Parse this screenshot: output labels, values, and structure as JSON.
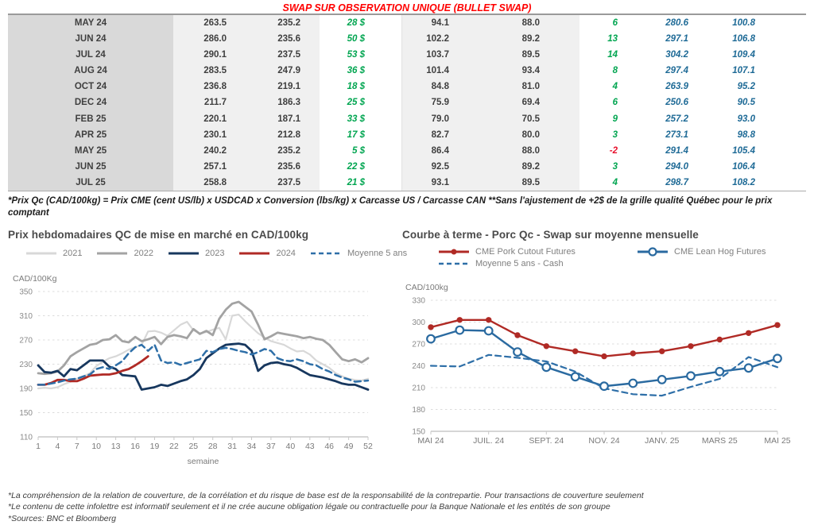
{
  "colors": {
    "title_red": "#FF0000",
    "positive_green": "#00A550",
    "negative_red": "#E8112D",
    "blue_italic": "#1E6A96"
  },
  "header": {
    "title": "SWAP SUR OBSERVATION UNIQUE (BULLET SWAP)"
  },
  "table": {
    "rows": [
      {
        "month": "MAY 24",
        "c1": "263.5",
        "c2": "235.2",
        "swap": "28 $",
        "c3": "94.1",
        "c4": "88.0",
        "diff": "6",
        "c5": "280.6",
        "c6": "100.8"
      },
      {
        "month": "JUN 24",
        "c1": "286.0",
        "c2": "235.6",
        "swap": "50 $",
        "c3": "102.2",
        "c4": "89.2",
        "diff": "13",
        "c5": "297.1",
        "c6": "106.8"
      },
      {
        "month": "JUL 24",
        "c1": "290.1",
        "c2": "237.5",
        "swap": "53 $",
        "c3": "103.7",
        "c4": "89.5",
        "diff": "14",
        "c5": "304.2",
        "c6": "109.4"
      },
      {
        "month": "AUG 24",
        "c1": "283.5",
        "c2": "247.9",
        "swap": "36 $",
        "c3": "101.4",
        "c4": "93.4",
        "diff": "8",
        "c5": "297.4",
        "c6": "107.1"
      },
      {
        "month": "OCT 24",
        "c1": "236.8",
        "c2": "219.1",
        "swap": "18 $",
        "c3": "84.8",
        "c4": "81.0",
        "diff": "4",
        "c5": "263.9",
        "c6": "95.2"
      },
      {
        "month": "DEC 24",
        "c1": "211.7",
        "c2": "186.3",
        "swap": "25 $",
        "c3": "75.9",
        "c4": "69.4",
        "diff": "6",
        "c5": "250.6",
        "c6": "90.5"
      },
      {
        "month": "FEB 25",
        "c1": "220.1",
        "c2": "187.1",
        "swap": "33 $",
        "c3": "79.0",
        "c4": "70.5",
        "diff": "9",
        "c5": "257.2",
        "c6": "93.0"
      },
      {
        "month": "APR 25",
        "c1": "230.1",
        "c2": "212.8",
        "swap": "17 $",
        "c3": "82.7",
        "c4": "80.0",
        "diff": "3",
        "c5": "273.1",
        "c6": "98.8"
      },
      {
        "month": "MAY 25",
        "c1": "240.2",
        "c2": "235.2",
        "swap": "5 $",
        "c3": "86.4",
        "c4": "88.0",
        "diff": "-2",
        "c5": "291.4",
        "c6": "105.4"
      },
      {
        "month": "JUN 25",
        "c1": "257.1",
        "c2": "235.6",
        "swap": "22 $",
        "c3": "92.5",
        "c4": "89.2",
        "diff": "3",
        "c5": "294.0",
        "c6": "106.4"
      },
      {
        "month": "JUL 25",
        "c1": "258.8",
        "c2": "237.5",
        "swap": "21 $",
        "c3": "93.1",
        "c4": "89.5",
        "diff": "4",
        "c5": "298.7",
        "c6": "108.2"
      }
    ],
    "footnote": "*Prix Qc (CAD/100kg) = Prix CME (cent US/lb) x USDCAD x Conversion (lbs/kg) x Carcasse US / Carcasse CAN **Sans l'ajustement de +2$ de la grille qualité Québec pour le prix comptant"
  },
  "chart_data": [
    {
      "type": "line",
      "title": "Prix hebdomadaires QC de mise en marché en CAD/100kg",
      "ylabel": "CAD/100Kg",
      "xlabel": "semaine",
      "ylim": [
        110,
        350
      ],
      "ytick_step": 40,
      "grid": true,
      "legend_position": "top",
      "n_points": 52,
      "xticks": [
        "1",
        "4",
        "7",
        "10",
        "13",
        "16",
        "19",
        "22",
        "25",
        "28",
        "31",
        "34",
        "37",
        "40",
        "43",
        "46",
        "49",
        "52"
      ],
      "xtick_pos": [
        0,
        3,
        6,
        9,
        12,
        15,
        18,
        21,
        24,
        27,
        30,
        33,
        36,
        39,
        42,
        45,
        48,
        51
      ],
      "series": [
        {
          "name": "2021",
          "color": "#d8d8d8",
          "width": 2.2,
          "values": [
            190,
            191,
            190,
            192,
            197,
            201,
            206,
            210,
            215,
            227,
            234,
            240,
            243,
            248,
            254,
            258,
            262,
            284,
            285,
            282,
            277,
            286,
            295,
            300,
            286,
            281,
            283,
            287,
            290,
            271,
            310,
            312,
            301,
            291,
            281,
            274,
            268,
            265,
            262,
            256,
            251,
            252,
            246,
            236,
            230,
            224,
            215,
            210,
            206,
            204,
            203,
            206
          ]
        },
        {
          "name": "2022",
          "color": "#a3a3a3",
          "width": 2.8,
          "values": [
            215,
            214,
            215,
            218,
            228,
            243,
            250,
            256,
            262,
            264,
            270,
            271,
            278,
            268,
            266,
            275,
            268,
            271,
            275,
            263,
            275,
            278,
            276,
            273,
            288,
            280,
            285,
            278,
            305,
            320,
            330,
            333,
            325,
            317,
            295,
            271,
            276,
            282,
            280,
            278,
            276,
            273,
            275,
            272,
            270,
            262,
            250,
            238,
            235,
            238,
            233,
            240
          ]
        },
        {
          "name": "2023",
          "color": "#17375E",
          "width": 2.8,
          "values": [
            228,
            217,
            216,
            219,
            210,
            222,
            220,
            228,
            236,
            236,
            236,
            226,
            222,
            212,
            211,
            210,
            188,
            190,
            192,
            196,
            194,
            198,
            202,
            205,
            212,
            222,
            240,
            248,
            256,
            262,
            263,
            264,
            262,
            252,
            219,
            228,
            232,
            233,
            230,
            228,
            224,
            218,
            212,
            210,
            208,
            205,
            202,
            198,
            196,
            196,
            192,
            188
          ]
        },
        {
          "name": "2024",
          "color": "#B02A25",
          "width": 2.8,
          "values": [
            196,
            196,
            199,
            204,
            204,
            202,
            202,
            206,
            211,
            212,
            213,
            213,
            215,
            219,
            222,
            228,
            235,
            243
          ]
        },
        {
          "name": "Moyenne 5 ans",
          "color": "#2E6FA8",
          "width": 2.5,
          "dash": "8 5",
          "values": [
            196,
            196,
            198,
            200,
            203,
            205,
            206,
            210,
            213,
            222,
            225,
            222,
            228,
            235,
            248,
            258,
            262,
            252,
            262,
            236,
            232,
            233,
            229,
            232,
            235,
            238,
            252,
            250,
            255,
            257,
            255,
            252,
            250,
            246,
            250,
            255,
            252,
            240,
            236,
            235,
            238,
            235,
            230,
            228,
            222,
            218,
            212,
            208,
            205,
            201,
            202,
            203
          ]
        }
      ]
    },
    {
      "type": "line",
      "title": "Courbe à terme - Porc Qc - Swap sur moyenne mensuelle",
      "ylabel": "CAD/100kg",
      "xlabel": "",
      "ylim": [
        150,
        330
      ],
      "ytick_step": 30,
      "grid": true,
      "legend_position": "top",
      "n_points": 13,
      "xticks": [
        "MAI 24",
        "JUIL. 24",
        "SEPT. 24",
        "NOV. 24",
        "JANV. 25",
        "MARS 25",
        "MAI 25"
      ],
      "xtick_pos": [
        0,
        2,
        4,
        6,
        8,
        10,
        12
      ],
      "series": [
        {
          "name": "CME Pork Cutout Futures",
          "color": "#B02A25",
          "width": 2.4,
          "marker": "filled",
          "values": [
            293,
            303,
            303,
            282,
            267,
            260,
            253,
            257,
            260,
            267,
            276,
            285,
            296
          ]
        },
        {
          "name": "CME Lean Hog Futures",
          "color": "#2A6AA0",
          "width": 2.4,
          "marker": "open",
          "values": [
            277,
            289,
            288,
            259,
            238,
            225,
            212,
            216,
            221,
            226,
            232,
            237,
            250
          ]
        },
        {
          "name": "Moyenne 5 ans - Cash",
          "color": "#2E6FA8",
          "width": 2.2,
          "dash": "7 5",
          "values": [
            240,
            239,
            255,
            251,
            246,
            232,
            209,
            201,
            199,
            211,
            222,
            252,
            238
          ]
        }
      ]
    }
  ],
  "footer": {
    "notes": [
      "*La compréhension de la relation de couverture, de la corrélation et du risque de base est de la responsabilité de la contrepartie. Pour transactions de couverture seulement",
      "*Le contenu de cette infolettre est informatif seulement et il ne crée aucune obligation légale ou contractuelle pour la Banque Nationale et les entités de son groupe",
      "*Sources: BNC et Bloomberg"
    ]
  }
}
